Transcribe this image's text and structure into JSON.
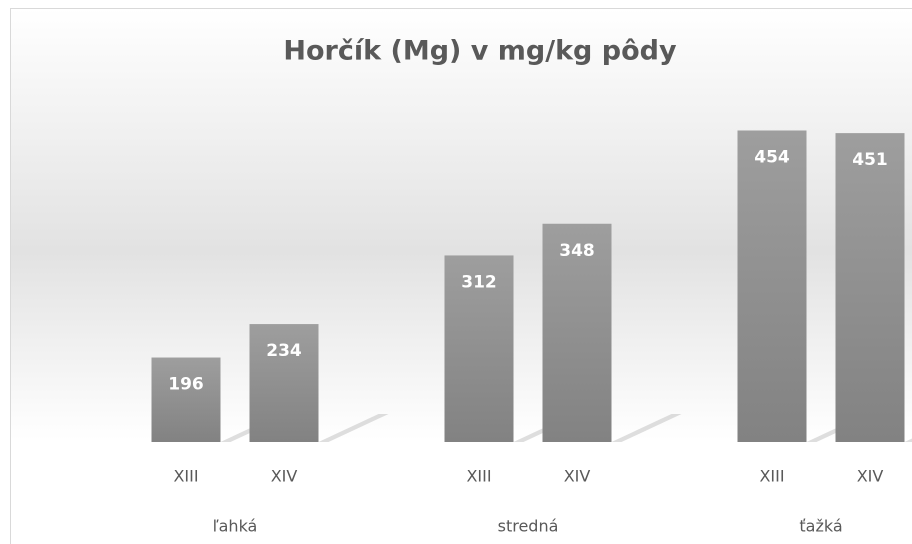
{
  "chart_data": {
    "type": "bar",
    "title": "Horčík (Mg) v mg/kg pôdy",
    "groups": [
      "ľahká",
      "stredná",
      "ťažká"
    ],
    "categories": [
      "XIII",
      "XIV",
      "XIII",
      "XIV",
      "XIII",
      "XIV"
    ],
    "values": [
      196,
      234,
      312,
      348,
      454,
      451
    ],
    "color": "#8c8c8c",
    "ylim": [
      100,
      500
    ]
  }
}
